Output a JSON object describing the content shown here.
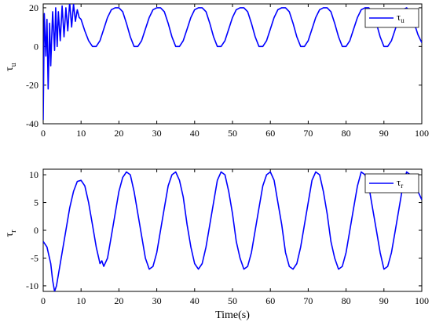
{
  "chart_data": [
    {
      "type": "line",
      "ylabel": "τu",
      "ylabel_main": "τ",
      "ylabel_sub": "u",
      "xlabel": "",
      "xlim": [
        0,
        100
      ],
      "ylim": [
        -40,
        22
      ],
      "xticks": [
        0,
        10,
        20,
        30,
        40,
        50,
        60,
        70,
        80,
        90,
        100
      ],
      "yticks": [
        20,
        0,
        -20,
        -40
      ],
      "grid": false,
      "legend_position": "top-right",
      "series": [
        {
          "name": "τu",
          "name_main": "τ",
          "name_sub": "u",
          "color": "#0000ff",
          "x": [
            0,
            0.3,
            0.7,
            1.0,
            1.3,
            1.7,
            2.0,
            2.5,
            3.0,
            3.3,
            3.7,
            4.0,
            4.5,
            5.0,
            5.5,
            6.0,
            6.5,
            7.0,
            7.5,
            8.0,
            8.5,
            9.0,
            9.5,
            10.0,
            11.0,
            12.0,
            13.0,
            14.0,
            15.0,
            16.0,
            17.0,
            18.0,
            19.0,
            20.0,
            21.0,
            22.0,
            23.0,
            24.0,
            25.0,
            26.0,
            27.0,
            28.0,
            29.0,
            30.0,
            31.0,
            32.0,
            33.0,
            34.0,
            35.0,
            36.0,
            37.0,
            38.0,
            39.0,
            40.0,
            41.0,
            42.0,
            43.0,
            44.0,
            45.0,
            46.0,
            47.0,
            48.0,
            49.0,
            50.0,
            51.0,
            52.0,
            53.0,
            54.0,
            55.0,
            56.0,
            57.0,
            58.0,
            59.0,
            60.0,
            61.0,
            62.0,
            63.0,
            64.0,
            65.0,
            66.0,
            67.0,
            68.0,
            69.0,
            70.0,
            71.0,
            72.0,
            73.0,
            74.0,
            75.0,
            76.0,
            77.0,
            78.0,
            79.0,
            80.0,
            81.0,
            82.0,
            83.0,
            84.0,
            85.0,
            86.0,
            87.0,
            88.0,
            89.0,
            90.0,
            91.0,
            92.0,
            93.0,
            94.0,
            95.0,
            96.0,
            97.0,
            98.0,
            99.0,
            100.0
          ],
          "y": [
            -38,
            17,
            -5,
            14,
            -22,
            12,
            -10,
            18,
            -2,
            20,
            0,
            18,
            3,
            21,
            5,
            20,
            8,
            23,
            10,
            22,
            13,
            19,
            15,
            14,
            8,
            3,
            0,
            0,
            3,
            9,
            15,
            19,
            20,
            20,
            18,
            12,
            5,
            0,
            0,
            3,
            9,
            15,
            19,
            20,
            20,
            18,
            12,
            5,
            0,
            0,
            3,
            9,
            15,
            19,
            20,
            20,
            18,
            12,
            5,
            0,
            0,
            3,
            9,
            15,
            19,
            20,
            20,
            18,
            12,
            5,
            0,
            0,
            3,
            9,
            15,
            19,
            20,
            20,
            18,
            12,
            5,
            0,
            0,
            3,
            9,
            15,
            19,
            20,
            20,
            18,
            12,
            5,
            0,
            0,
            3,
            9,
            15,
            19,
            20,
            20,
            18,
            12,
            5,
            0,
            0,
            3,
            9,
            15,
            19,
            20,
            18,
            12,
            6,
            2
          ]
        }
      ]
    },
    {
      "type": "line",
      "ylabel": "τr",
      "ylabel_main": "τ",
      "ylabel_sub": "r",
      "xlabel": "Time(s)",
      "xlim": [
        0,
        100
      ],
      "ylim": [
        -11,
        11
      ],
      "xticks": [
        0,
        10,
        20,
        30,
        40,
        50,
        60,
        70,
        80,
        90,
        100
      ],
      "yticks": [
        10,
        5,
        0,
        -5,
        -10
      ],
      "grid": false,
      "legend_position": "top-right",
      "series": [
        {
          "name": "τr",
          "name_main": "τ",
          "name_sub": "r",
          "color": "#0000ff",
          "x": [
            0,
            1.0,
            2.0,
            2.5,
            3.0,
            3.5,
            4.0,
            5.0,
            6.0,
            7.0,
            8.0,
            9.0,
            10.0,
            11.0,
            12.0,
            13.0,
            14.0,
            15.0,
            15.5,
            16.0,
            17.0,
            18.0,
            19.0,
            20.0,
            21.0,
            22.0,
            23.0,
            24.0,
            25.0,
            26.0,
            27.0,
            28.0,
            29.0,
            30.0,
            31.0,
            32.0,
            33.0,
            34.0,
            35.0,
            36.0,
            37.0,
            38.0,
            39.0,
            40.0,
            41.0,
            42.0,
            43.0,
            44.0,
            45.0,
            46.0,
            47.0,
            48.0,
            49.0,
            50.0,
            51.0,
            52.0,
            53.0,
            54.0,
            55.0,
            56.0,
            57.0,
            58.0,
            59.0,
            60.0,
            61.0,
            62.0,
            63.0,
            64.0,
            65.0,
            66.0,
            67.0,
            68.0,
            69.0,
            70.0,
            71.0,
            72.0,
            73.0,
            74.0,
            75.0,
            76.0,
            77.0,
            78.0,
            79.0,
            80.0,
            81.0,
            82.0,
            83.0,
            84.0,
            85.0,
            86.0,
            87.0,
            88.0,
            89.0,
            90.0,
            91.0,
            92.0,
            93.0,
            94.0,
            95.0,
            96.0,
            97.0,
            98.0,
            99.0,
            100.0
          ],
          "y": [
            -2,
            -3,
            -6,
            -9,
            -11,
            -10,
            -8,
            -4,
            0,
            4,
            7,
            8.8,
            9,
            8,
            5,
            1,
            -3,
            -6,
            -5.5,
            -6.5,
            -5,
            -1,
            3,
            7,
            9.5,
            10.5,
            10,
            7,
            3,
            -1,
            -5,
            -7,
            -6.5,
            -4,
            0,
            4,
            8,
            10,
            10.5,
            9,
            6,
            1,
            -3,
            -6,
            -7,
            -6,
            -3,
            1,
            5,
            9,
            10.5,
            10,
            7,
            3,
            -2,
            -5,
            -7,
            -6.5,
            -4,
            0,
            4,
            8,
            10,
            10.5,
            9,
            5,
            1,
            -4,
            -6.5,
            -7,
            -6,
            -3,
            1,
            5,
            9,
            10.5,
            10,
            7,
            3,
            -2,
            -5,
            -7,
            -6.5,
            -4,
            0,
            4,
            8,
            10.5,
            10,
            8,
            4,
            0,
            -4,
            -7,
            -6.5,
            -4,
            0,
            4,
            8,
            10.5,
            10,
            8,
            7,
            5.5
          ]
        }
      ]
    }
  ]
}
